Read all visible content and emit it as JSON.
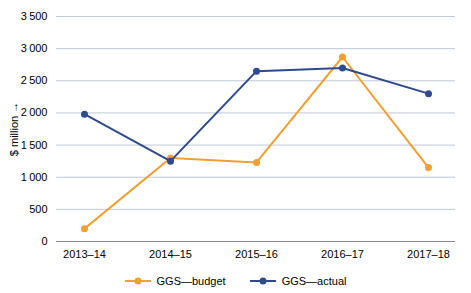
{
  "chart_data": {
    "type": "line",
    "categories": [
      "2013–14",
      "2014–15",
      "2015–16",
      "2016–17",
      "2017–18"
    ],
    "series": [
      {
        "name": "GGS—budget",
        "color": "#F0A030",
        "marker": "circle",
        "values": [
          200,
          1300,
          1230,
          2870,
          1150
        ]
      },
      {
        "name": "GGS—actual",
        "color": "#2E4A8C",
        "marker": "circle",
        "values": [
          1980,
          1250,
          2650,
          2700,
          2300
        ]
      }
    ],
    "ylabel": "$ million",
    "ylim": [
      0,
      3500
    ],
    "yticks": [
      0,
      500,
      {
        "value": 1000,
        "label": "1 000"
      },
      {
        "value": 1500,
        "label": "1 500"
      },
      {
        "value": 2000,
        "label": "2 000"
      },
      {
        "value": 2500,
        "label": "2 500"
      },
      {
        "value": 3000,
        "label": "3 000"
      },
      {
        "value": 3500,
        "label": "3 500"
      }
    ],
    "grid": true,
    "legend": "bottom"
  }
}
